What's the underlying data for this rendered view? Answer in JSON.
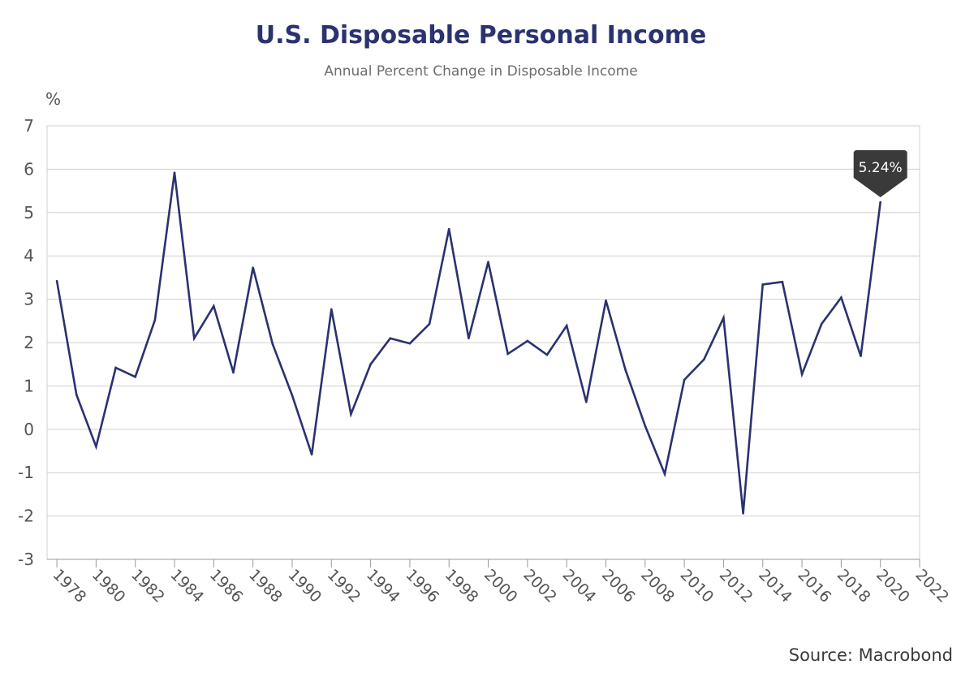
{
  "chart_data": {
    "type": "line",
    "title": "U.S. Disposable Personal Income",
    "subtitle": "Annual Percent Change in Disposable Income",
    "ylabel": "%",
    "source": "Source: Macrobond",
    "ylim": [
      -3,
      7
    ],
    "yticks": [
      "7",
      "6",
      "5",
      "4",
      "3",
      "2",
      "1",
      "0",
      "-1",
      "-2",
      "-3"
    ],
    "xlim": [
      1977.5,
      2022
    ],
    "xticks": [
      "1978",
      "1980",
      "1982",
      "1984",
      "1986",
      "1988",
      "1990",
      "1992",
      "1994",
      "1996",
      "1998",
      "2000",
      "2002",
      "2004",
      "2006",
      "2008",
      "2010",
      "2012",
      "2014",
      "2016",
      "2018",
      "2020",
      "2022"
    ],
    "grid": true,
    "line_color": "#2a3270",
    "series": [
      {
        "x": [
          1978,
          1979,
          1980,
          1981,
          1982,
          1983,
          1984,
          1985,
          1986,
          1987,
          1988,
          1989,
          1990,
          1991,
          1992,
          1993,
          1994,
          1995,
          1996,
          1997,
          1998,
          1999,
          2000,
          2001,
          2002,
          2003,
          2004,
          2005,
          2006,
          2007,
          2008,
          2009,
          2010,
          2011,
          2012,
          2013,
          2014,
          2015,
          2016,
          2017,
          2018,
          2019,
          2020
        ],
        "values": [
          3.42,
          0.8,
          -0.4,
          1.42,
          1.21,
          2.52,
          5.92,
          2.1,
          2.84,
          1.31,
          3.73,
          1.97,
          0.78,
          -0.58,
          2.77,
          0.35,
          1.5,
          2.1,
          1.98,
          2.43,
          4.62,
          2.1,
          3.86,
          1.74,
          2.04,
          1.72,
          2.39,
          0.63,
          2.97,
          1.37,
          0.08,
          -1.03,
          1.14,
          1.61,
          2.57,
          -1.94,
          3.34,
          3.4,
          1.27,
          2.43,
          3.04,
          1.69,
          5.24
        ]
      }
    ],
    "annotation": {
      "x": 2020,
      "y": 5.24,
      "label": "5.24%"
    }
  }
}
